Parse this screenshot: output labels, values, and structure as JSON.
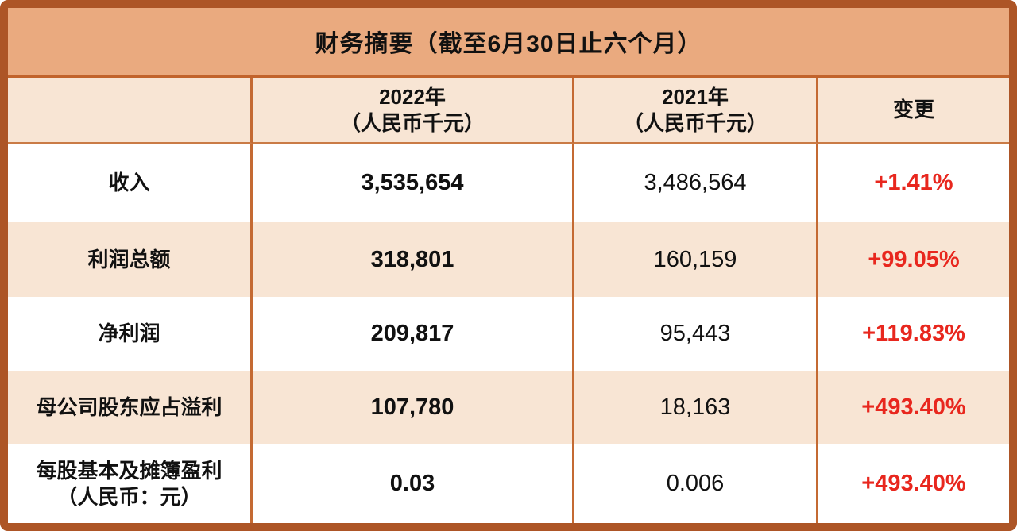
{
  "title": "财务摘要（截至6月30日止六个月）",
  "header": {
    "col_2022_line1": "2022年",
    "col_2022_line2": "（人民币千元）",
    "col_2021_line1": "2021年",
    "col_2021_line2": "（人民币千元）",
    "col_change": "变更"
  },
  "rows": [
    {
      "label": "收入",
      "v2022": "3,535,654",
      "v2021": "3,486,564",
      "change": "+1.41%"
    },
    {
      "label": "利润总额",
      "v2022": "318,801",
      "v2021": "160,159",
      "change": "+99.05%"
    },
    {
      "label": "净利润",
      "v2022": "209,817",
      "v2021": "95,443",
      "change": "+119.83%"
    },
    {
      "label": "母公司股东应占溢利",
      "v2022": "107,780",
      "v2021": "18,163",
      "change": "+493.40%"
    },
    {
      "label": "每股基本及摊簿盈利",
      "label_line2": "（人民币：元）",
      "v2022": "0.03",
      "v2021": "0.006",
      "change": "+493.40%"
    }
  ],
  "colors": {
    "outer_border": "#ad5526",
    "title_bg": "#eaaa7f",
    "title_divider": "#c2632b",
    "peach_bg": "#f8e5d4",
    "header_underline": "#ca7b46",
    "col_divider": "#c46a33",
    "text": "#111111",
    "change_red": "#e8271e"
  }
}
